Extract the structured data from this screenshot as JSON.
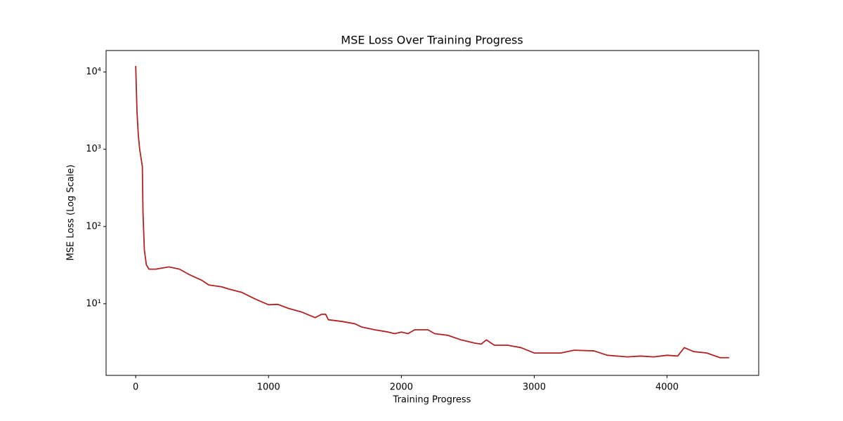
{
  "chart_data": {
    "type": "line",
    "title": "MSE Loss Over Training Progress",
    "x_label": "Training Progress",
    "y_label": "MSE Loss (Log Scale)",
    "y_scale": "log",
    "xlim": [
      -223,
      4690
    ],
    "ylim": [
      1.18,
      19000
    ],
    "xticks": [
      0,
      1000,
      2000,
      3000,
      4000
    ],
    "yticks": [
      {
        "value": 10,
        "label": "10¹"
      },
      {
        "value": 100,
        "label": "10²"
      },
      {
        "value": 1000,
        "label": "10³"
      },
      {
        "value": 10000,
        "label": "10⁴"
      }
    ],
    "series": [
      {
        "name": "MSE Loss",
        "color": "#b22222",
        "x": [
          0,
          10,
          20,
          30,
          50,
          55,
          65,
          80,
          100,
          150,
          250,
          330,
          400,
          500,
          550,
          650,
          700,
          800,
          900,
          1000,
          1070,
          1150,
          1250,
          1350,
          1400,
          1430,
          1450,
          1550,
          1650,
          1700,
          1800,
          1900,
          1950,
          2000,
          2050,
          2100,
          2200,
          2250,
          2350,
          2450,
          2550,
          2600,
          2640,
          2700,
          2800,
          2900,
          3000,
          3100,
          3200,
          3300,
          3450,
          3550,
          3700,
          3800,
          3900,
          4000,
          4080,
          4130,
          4200,
          4300,
          4400,
          4467
        ],
        "values": [
          12000,
          3000,
          1500,
          1000,
          600,
          150,
          50,
          32,
          28,
          28,
          30,
          28,
          24,
          20,
          17.5,
          16.5,
          15.5,
          14,
          11.5,
          9.7,
          9.8,
          8.7,
          7.8,
          6.6,
          7.3,
          7.3,
          6.2,
          5.9,
          5.5,
          5.0,
          4.6,
          4.3,
          4.1,
          4.3,
          4.1,
          4.6,
          4.6,
          4.1,
          3.9,
          3.4,
          3.1,
          3.0,
          3.4,
          2.9,
          2.9,
          2.7,
          2.3,
          2.3,
          2.3,
          2.5,
          2.45,
          2.15,
          2.05,
          2.1,
          2.05,
          2.15,
          2.1,
          2.7,
          2.4,
          2.3,
          2.0,
          2.0
        ]
      }
    ]
  }
}
